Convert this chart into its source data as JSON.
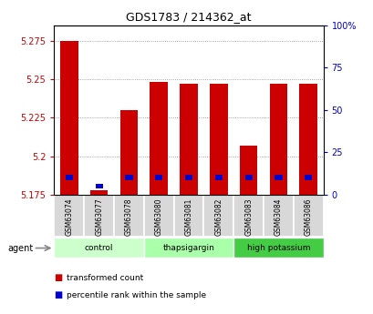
{
  "title": "GDS1783 / 214362_at",
  "samples": [
    "GSM63074",
    "GSM63077",
    "GSM63078",
    "GSM63080",
    "GSM63081",
    "GSM63082",
    "GSM63083",
    "GSM63084",
    "GSM63086"
  ],
  "transformed_counts": [
    5.2745,
    5.178,
    5.23,
    5.248,
    5.247,
    5.247,
    5.207,
    5.247,
    5.247
  ],
  "percentile_ranks": [
    10,
    5,
    10,
    10,
    10,
    10,
    10,
    10,
    10
  ],
  "ylim": [
    5.175,
    5.285
  ],
  "yticks": [
    5.175,
    5.2,
    5.225,
    5.25,
    5.275
  ],
  "right_yticks": [
    0,
    25,
    50,
    75,
    100
  ],
  "groups": [
    {
      "label": "control",
      "indices": [
        0,
        1,
        2
      ],
      "color": "#ccffcc"
    },
    {
      "label": "thapsigargin",
      "indices": [
        3,
        4,
        5
      ],
      "color": "#aaffaa"
    },
    {
      "label": "high potassium",
      "indices": [
        6,
        7,
        8
      ],
      "color": "#44cc44"
    }
  ],
  "bar_color": "#cc0000",
  "percentile_color": "#0000cc",
  "bar_width": 0.6,
  "percentile_bar_width": 0.25,
  "background_color": "#ffffff",
  "tick_label_color": "#cc0000",
  "right_tick_color": "#0000cc",
  "grid_color": "#888888",
  "legend_items": [
    "transformed count",
    "percentile rank within the sample"
  ],
  "legend_colors": [
    "#cc0000",
    "#0000cc"
  ]
}
